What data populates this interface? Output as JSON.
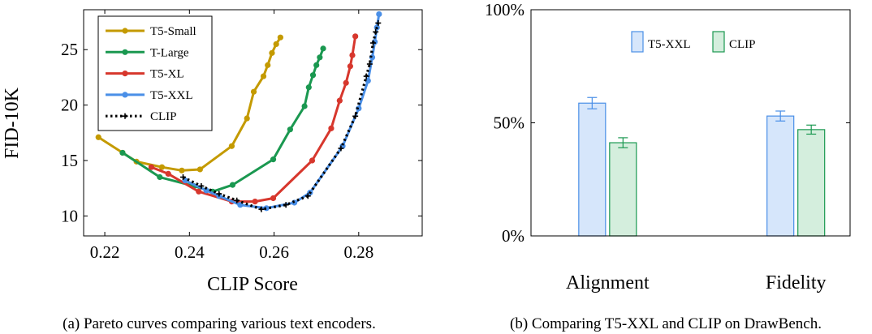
{
  "chart_data": [
    {
      "type": "line",
      "title": "",
      "xlabel": "CLIP Score",
      "ylabel": "FID-10K",
      "xlim": [
        0.215,
        0.295
      ],
      "ylim": [
        8.2,
        28.6
      ],
      "xticks": [
        0.22,
        0.24,
        0.26,
        0.28
      ],
      "xtick_labels": [
        "0.22",
        "0.24",
        "0.26",
        "0.28"
      ],
      "yticks": [
        10,
        15,
        20,
        25
      ],
      "ytick_labels": [
        "10",
        "15",
        "20",
        "25"
      ],
      "legend_position": "top-left",
      "caption": "(a) Pareto curves comparing various text encoders.",
      "series": [
        {
          "name": "T5-Small",
          "color": "#c49a00",
          "style": "solid",
          "x": [
            0.2185,
            0.2242,
            0.2275,
            0.2335,
            0.2382,
            0.2425,
            0.25,
            0.2536,
            0.2552,
            0.2575,
            0.2585,
            0.2595,
            0.2605,
            0.2615
          ],
          "y": [
            17.1,
            15.7,
            14.9,
            14.4,
            14.1,
            14.2,
            16.3,
            18.8,
            21.2,
            22.6,
            23.6,
            24.7,
            25.5,
            26.1
          ]
        },
        {
          "name": "T-Large",
          "color": "#1a9850",
          "style": "solid",
          "x": [
            0.2242,
            0.233,
            0.241,
            0.2455,
            0.2502,
            0.2598,
            0.2638,
            0.2672,
            0.2682,
            0.2692,
            0.27,
            0.2708,
            0.2716
          ],
          "y": [
            15.7,
            13.5,
            12.7,
            12.2,
            12.8,
            15.1,
            17.8,
            19.9,
            21.6,
            22.7,
            23.6,
            24.3,
            25.1
          ]
        },
        {
          "name": "T5-XL",
          "color": "#d7372d",
          "style": "solid",
          "x": [
            0.231,
            0.235,
            0.2422,
            0.25,
            0.2555,
            0.2598,
            0.269,
            0.2735,
            0.2755,
            0.277,
            0.278,
            0.2785,
            0.2792
          ],
          "y": [
            14.4,
            13.8,
            12.2,
            11.3,
            11.3,
            11.6,
            15.0,
            17.9,
            20.4,
            22.0,
            23.5,
            24.5,
            26.2
          ]
        },
        {
          "name": "T5-XXL",
          "color": "#4a8fe7",
          "style": "solid",
          "x": [
            0.239,
            0.244,
            0.247,
            0.252,
            0.2582,
            0.2648,
            0.2685,
            0.2762,
            0.28,
            0.2822,
            0.2832,
            0.2838,
            0.2843,
            0.2848
          ],
          "y": [
            13.2,
            12.3,
            11.8,
            11.0,
            10.7,
            11.2,
            12.1,
            16.3,
            19.7,
            22.2,
            24.3,
            25.7,
            27.0,
            28.2
          ]
        },
        {
          "name": "CLIP",
          "color": "#000000",
          "style": "dotted",
          "x": [
            0.2385,
            0.2428,
            0.247,
            0.2512,
            0.257,
            0.2628,
            0.268,
            0.2758,
            0.2792,
            0.2818,
            0.2826,
            0.2834,
            0.284,
            0.2846
          ],
          "y": [
            13.5,
            12.7,
            12.0,
            11.4,
            10.6,
            11.0,
            11.8,
            16.1,
            19.0,
            22.6,
            23.7,
            25.6,
            26.6,
            27.4
          ]
        }
      ]
    },
    {
      "type": "bar",
      "title": "",
      "categories": [
        "Alignment",
        "Fidelity"
      ],
      "ylim": [
        0,
        100
      ],
      "yticks": [
        0,
        50,
        100
      ],
      "ytick_labels": [
        "0%",
        "50%",
        "100%"
      ],
      "legend_position": "top-center",
      "caption": "(b) Comparing T5-XXL and CLIP on DrawBench.",
      "series": [
        {
          "name": "T5-XXL",
          "fill": "#d6e6fb",
          "stroke": "#4a8fe7",
          "values": [
            58.7,
            53.0
          ],
          "errors": [
            2.5,
            2.2
          ]
        },
        {
          "name": "CLIP",
          "fill": "#d4eedd",
          "stroke": "#1a9850",
          "values": [
            41.2,
            47.0
          ],
          "errors": [
            2.2,
            2.0
          ]
        }
      ]
    }
  ]
}
